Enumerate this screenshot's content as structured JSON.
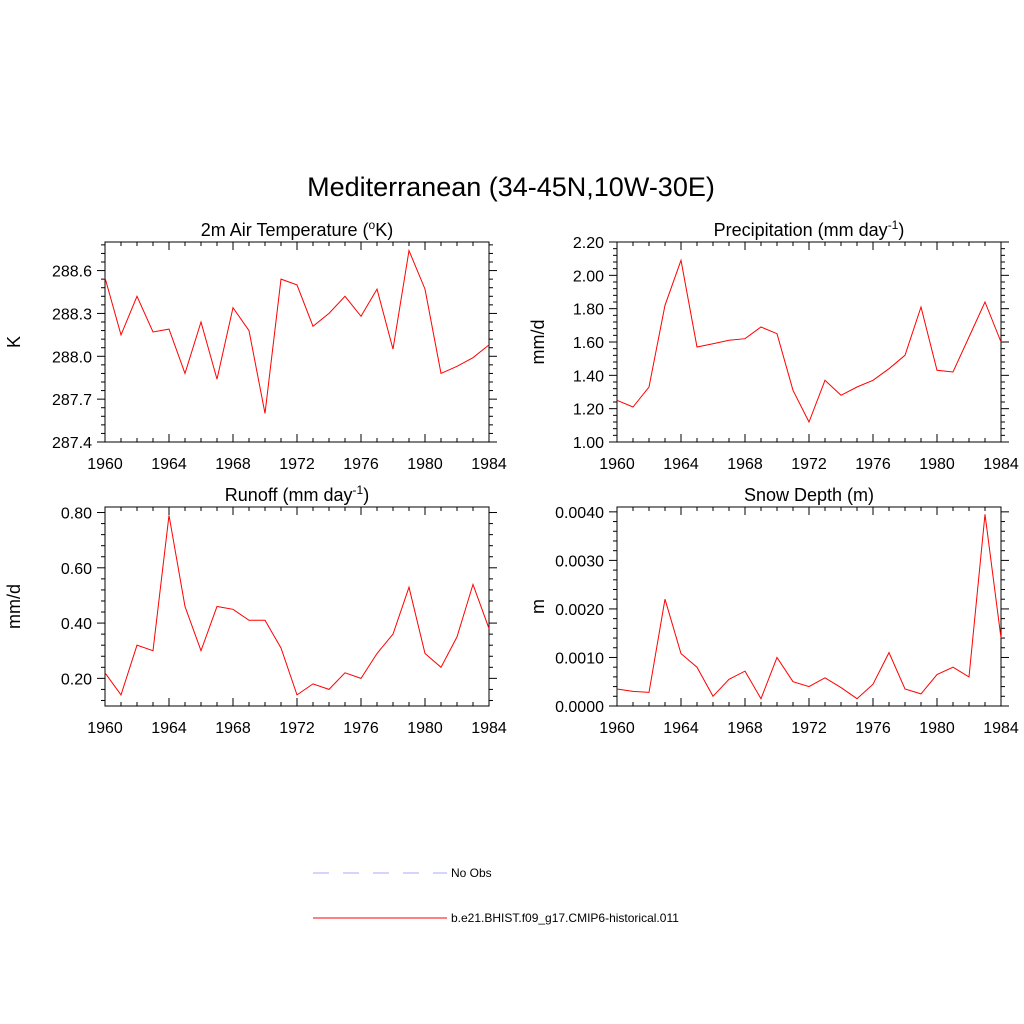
{
  "figure": {
    "title": "Mediterranean (34-45N,10W-30E)"
  },
  "legend": {
    "entries": [
      {
        "label": "No Obs",
        "color": "#aaaaff",
        "dash": true
      },
      {
        "label": "b.e21.BHIST.f09_g17.CMIP6-historical.011",
        "color": "#ff0000",
        "dash": false
      }
    ]
  },
  "chart_data": [
    {
      "type": "line",
      "title": "2m Air Temperature (",
      "title_sup": "o",
      "title_tail": "K)",
      "ylabel": "K",
      "xlim": [
        1960,
        1984
      ],
      "ylim": [
        287.4,
        288.8
      ],
      "xticks": [
        1960,
        1964,
        1968,
        1972,
        1976,
        1980,
        1984
      ],
      "yticks": [
        287.4,
        287.7,
        288.0,
        288.3,
        288.6
      ],
      "ytick_labels": [
        "287.4",
        "287.7",
        "288.0",
        "288.3",
        "288.6"
      ],
      "series": [
        {
          "color": "#ff0000",
          "x": [
            1960,
            1961,
            1962,
            1963,
            1964,
            1965,
            1966,
            1967,
            1968,
            1969,
            1970,
            1971,
            1972,
            1973,
            1974,
            1975,
            1976,
            1977,
            1978,
            1979,
            1980,
            1981,
            1982,
            1983,
            1984
          ],
          "y": [
            288.55,
            288.15,
            288.42,
            288.17,
            288.19,
            287.88,
            288.24,
            287.84,
            288.34,
            288.18,
            287.6,
            288.54,
            288.5,
            288.21,
            288.3,
            288.42,
            288.28,
            288.47,
            288.05,
            288.74,
            288.47,
            287.88,
            287.93,
            287.99,
            288.08
          ]
        }
      ]
    },
    {
      "type": "line",
      "title": "Precipitation (mm day",
      "title_sup": "-1",
      "title_tail": ")",
      "ylabel": "mm/d",
      "xlim": [
        1960,
        1984
      ],
      "ylim": [
        1.0,
        2.2
      ],
      "xticks": [
        1960,
        1964,
        1968,
        1972,
        1976,
        1980,
        1984
      ],
      "yticks": [
        1.0,
        1.2,
        1.4,
        1.6,
        1.8,
        2.0,
        2.2
      ],
      "ytick_labels": [
        "1.00",
        "1.20",
        "1.40",
        "1.60",
        "1.80",
        "2.00",
        "2.20"
      ],
      "series": [
        {
          "color": "#ff0000",
          "x": [
            1960,
            1961,
            1962,
            1963,
            1964,
            1965,
            1966,
            1967,
            1968,
            1969,
            1970,
            1971,
            1972,
            1973,
            1974,
            1975,
            1976,
            1977,
            1978,
            1979,
            1980,
            1981,
            1982,
            1983,
            1984
          ],
          "y": [
            1.25,
            1.21,
            1.33,
            1.82,
            2.09,
            1.57,
            1.59,
            1.61,
            1.62,
            1.69,
            1.65,
            1.31,
            1.12,
            1.37,
            1.28,
            1.33,
            1.37,
            1.44,
            1.52,
            1.81,
            1.43,
            1.42,
            1.63,
            1.84,
            1.6
          ]
        }
      ]
    },
    {
      "type": "line",
      "title": "Runoff (mm day",
      "title_sup": "-1",
      "title_tail": ")",
      "ylabel": "mm/d",
      "xlim": [
        1960,
        1984
      ],
      "ylim": [
        0.1,
        0.82
      ],
      "xticks": [
        1960,
        1964,
        1968,
        1972,
        1976,
        1980,
        1984
      ],
      "yticks": [
        0.2,
        0.4,
        0.6,
        0.8
      ],
      "ytick_labels": [
        "0.20",
        "0.40",
        "0.60",
        "0.80"
      ],
      "series": [
        {
          "color": "#ff0000",
          "x": [
            1960,
            1961,
            1962,
            1963,
            1964,
            1965,
            1966,
            1967,
            1968,
            1969,
            1970,
            1971,
            1972,
            1973,
            1974,
            1975,
            1976,
            1977,
            1978,
            1979,
            1980,
            1981,
            1982,
            1983,
            1984
          ],
          "y": [
            0.22,
            0.14,
            0.32,
            0.3,
            0.79,
            0.46,
            0.3,
            0.46,
            0.45,
            0.41,
            0.41,
            0.31,
            0.14,
            0.18,
            0.16,
            0.22,
            0.2,
            0.29,
            0.36,
            0.53,
            0.29,
            0.24,
            0.35,
            0.54,
            0.38
          ]
        }
      ]
    },
    {
      "type": "line",
      "title": "Snow Depth (m)",
      "title_sup": "",
      "title_tail": "",
      "ylabel": "m",
      "xlim": [
        1960,
        1984
      ],
      "ylim": [
        0.0,
        0.0041
      ],
      "xticks": [
        1960,
        1964,
        1968,
        1972,
        1976,
        1980,
        1984
      ],
      "yticks": [
        0.0,
        0.001,
        0.002,
        0.003,
        0.004
      ],
      "ytick_labels": [
        "0.0000",
        "0.0010",
        "0.0020",
        "0.0030",
        "0.0040"
      ],
      "series": [
        {
          "color": "#ff0000",
          "x": [
            1960,
            1961,
            1962,
            1963,
            1964,
            1965,
            1966,
            1967,
            1968,
            1969,
            1970,
            1971,
            1972,
            1973,
            1974,
            1975,
            1976,
            1977,
            1978,
            1979,
            1980,
            1981,
            1982,
            1983,
            1984
          ],
          "y": [
            0.00035,
            0.0003,
            0.00028,
            0.0022,
            0.00108,
            0.0008,
            0.0002,
            0.00055,
            0.00072,
            0.00015,
            0.001,
            0.0005,
            0.0004,
            0.00058,
            0.00038,
            0.00015,
            0.00045,
            0.0011,
            0.00035,
            0.00025,
            0.00065,
            0.0008,
            0.0006,
            0.00395,
            0.0014
          ]
        }
      ]
    }
  ]
}
